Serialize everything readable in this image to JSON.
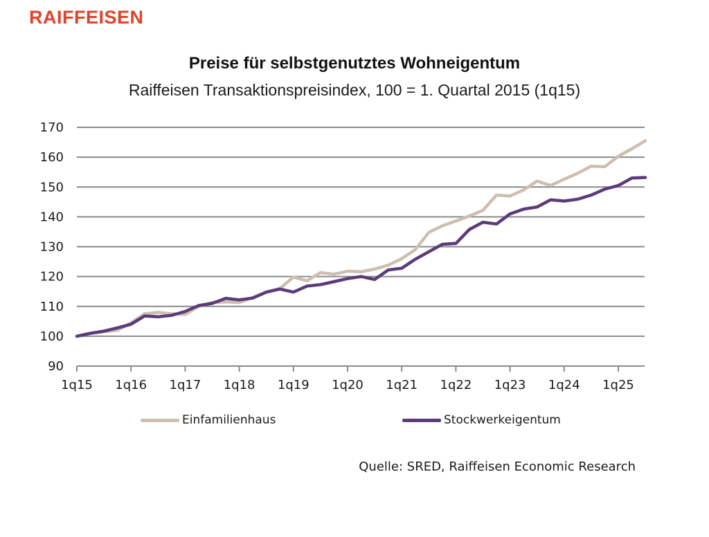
{
  "logo": {
    "text": "RAIFFEISEN",
    "color": "#e0432b"
  },
  "chart_data": {
    "type": "line",
    "title": "Preise für selbstgenutztes Wohneigentum",
    "subtitle": "Raiffeisen Transaktionspreisindex, 100 = 1. Quartal 2015 (1q15)",
    "xlabel": "",
    "ylabel": "",
    "ylim": [
      90,
      170
    ],
    "yticks": [
      "90",
      "100",
      "110",
      "120",
      "130",
      "140",
      "150",
      "160",
      "170"
    ],
    "grid": true,
    "xtick_labels": [
      "1q15",
      "1q16",
      "1q17",
      "1q18",
      "1q19",
      "1q20",
      "1q21",
      "1q22",
      "1q23",
      "1q24",
      "1q25"
    ],
    "x": [
      "1q15",
      "2q15",
      "3q15",
      "4q15",
      "1q16",
      "2q16",
      "3q16",
      "4q16",
      "1q17",
      "2q17",
      "3q17",
      "4q17",
      "1q18",
      "2q18",
      "3q18",
      "4q18",
      "1q19",
      "2q19",
      "3q19",
      "4q19",
      "1q20",
      "2q20",
      "3q20",
      "4q20",
      "1q21",
      "2q21",
      "3q21",
      "4q21",
      "1q22",
      "2q22",
      "3q22",
      "4q22",
      "1q23",
      "2q23",
      "3q23",
      "4q23",
      "1q24",
      "2q24",
      "3q24",
      "4q24",
      "1q25",
      "2q25",
      "3q25"
    ],
    "series": [
      {
        "name": "Einfamilienhaus",
        "color": "#cdbfb0",
        "values": [
          100,
          101,
          101.5,
          102,
          104.5,
          107.5,
          108,
          107.5,
          107.3,
          110,
          111.3,
          111.5,
          111.3,
          113,
          114.8,
          116,
          119.8,
          118.6,
          121.3,
          120.8,
          121.8,
          121.6,
          122.5,
          123.8,
          126,
          129,
          134.8,
          137,
          138.6,
          140.3,
          142.2,
          147.3,
          147,
          149,
          152,
          150.5,
          152.6,
          154.6,
          157,
          156.8,
          160.3,
          162.8,
          165.5
        ]
      },
      {
        "name": "Stockwerkeigentum",
        "color": "#5b3b7a",
        "values": [
          100,
          101,
          101.7,
          102.8,
          104,
          106.8,
          106.5,
          107,
          108.3,
          110.3,
          111,
          112.7,
          112.2,
          112.8,
          114.8,
          115.8,
          114.8,
          116.8,
          117.3,
          118.3,
          119.3,
          120,
          119,
          122.2,
          122.8,
          125.8,
          128.3,
          130.8,
          131.1,
          135.8,
          138.2,
          137.6,
          141,
          142.6,
          143.3,
          145.7,
          145.3,
          145.9,
          147.3,
          149.3,
          150.5,
          153,
          153.2
        ]
      }
    ],
    "legend": [
      "Einfamilienhaus",
      "Stockwerkeigentum"
    ],
    "legend_position": "bottom",
    "source": "Quelle: SRED, Raiffeisen Economic Research",
    "gridline_color": "#8a8a8a"
  }
}
